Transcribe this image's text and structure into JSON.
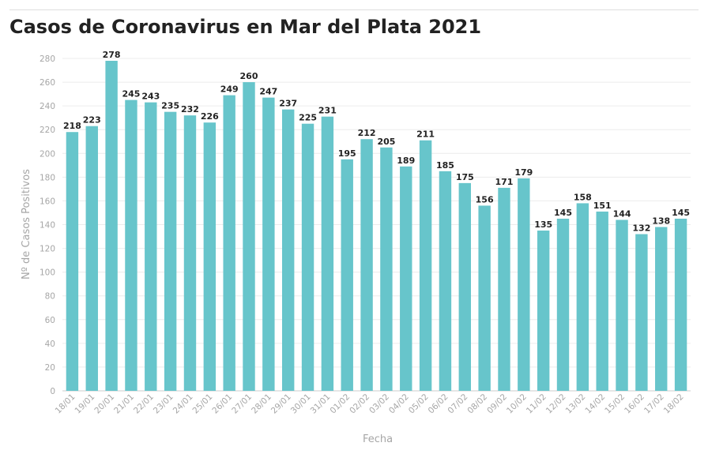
{
  "chart_data": {
    "type": "bar",
    "title": "Casos de Coronavirus en Mar del Plata 2021",
    "xlabel": "Fecha",
    "ylabel": "Nº de Casos Positivos",
    "ylim": [
      0,
      280
    ],
    "yticks": [
      0,
      20,
      40,
      60,
      80,
      100,
      120,
      140,
      160,
      180,
      200,
      220,
      240,
      260,
      280
    ],
    "grid": true,
    "bar_color": "#67c5cb",
    "categories": [
      "18/01",
      "19/01",
      "20/01",
      "21/01",
      "22/01",
      "23/01",
      "24/01",
      "25/01",
      "26/01",
      "27/01",
      "28/01",
      "29/01",
      "30/01",
      "31/01",
      "01/02",
      "02/02",
      "03/02",
      "04/02",
      "05/02",
      "06/02",
      "07/02",
      "08/02",
      "09/02",
      "10/02",
      "11/02",
      "12/02",
      "13/02",
      "14/02",
      "15/02",
      "16/02",
      "17/02",
      "18/02"
    ],
    "values": [
      218,
      223,
      278,
      245,
      243,
      235,
      232,
      226,
      249,
      260,
      247,
      237,
      225,
      231,
      195,
      212,
      205,
      189,
      211,
      185,
      175,
      156,
      171,
      179,
      135,
      145,
      158,
      151,
      144,
      132,
      138,
      145
    ]
  }
}
